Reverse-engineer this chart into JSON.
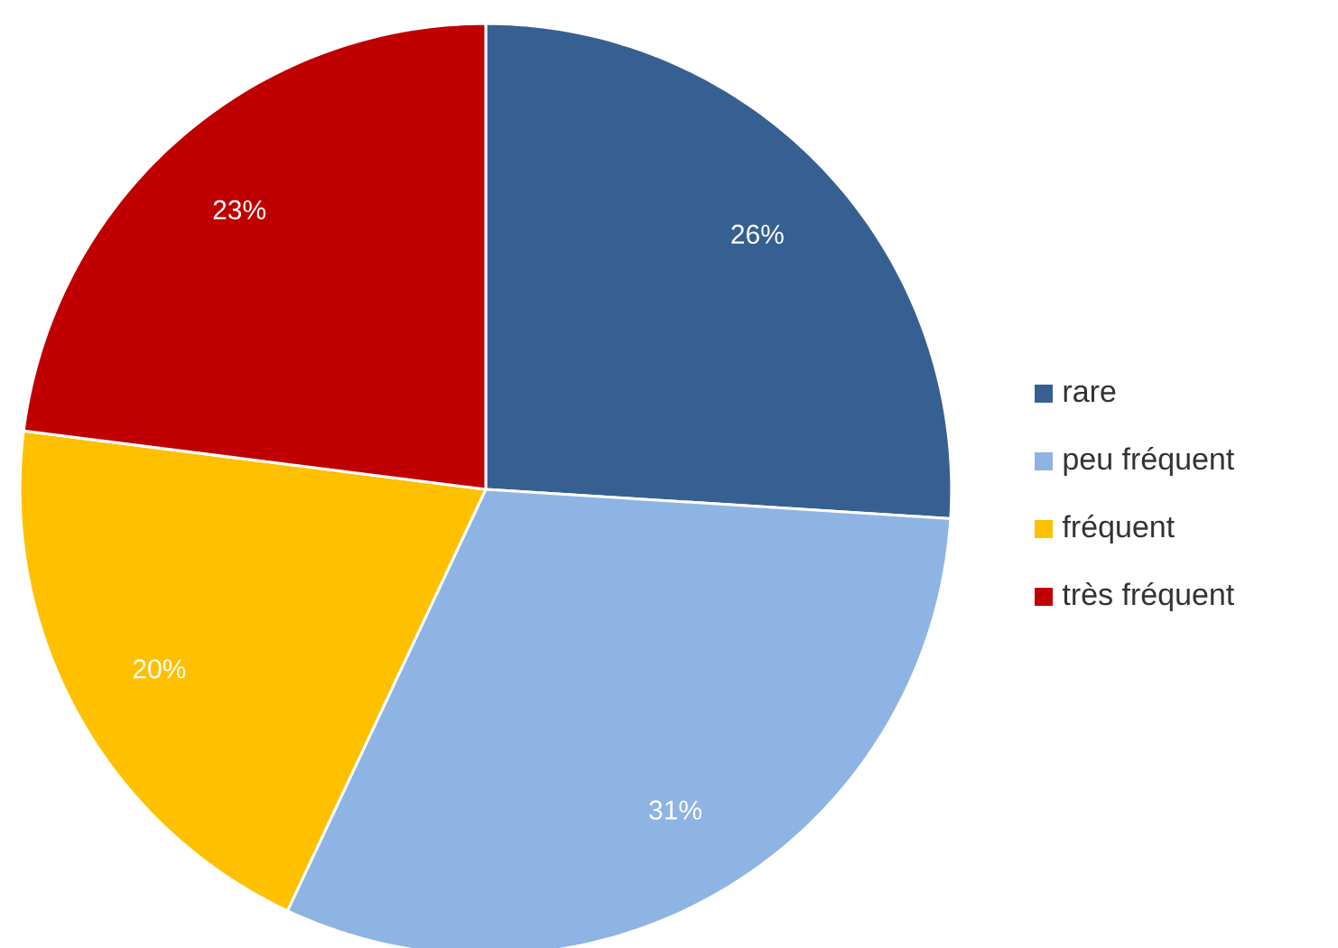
{
  "chart_data": {
    "type": "pie",
    "categories": [
      "rare",
      "peu fréquent",
      "fréquent",
      "très fréquent"
    ],
    "values": [
      26,
      31,
      20,
      23
    ],
    "colors": [
      "#376092",
      "#8eb4e3",
      "#ffc000",
      "#c00000"
    ],
    "value_labels": [
      "26%",
      "31%",
      "20%",
      "23%"
    ],
    "legend": "right"
  }
}
